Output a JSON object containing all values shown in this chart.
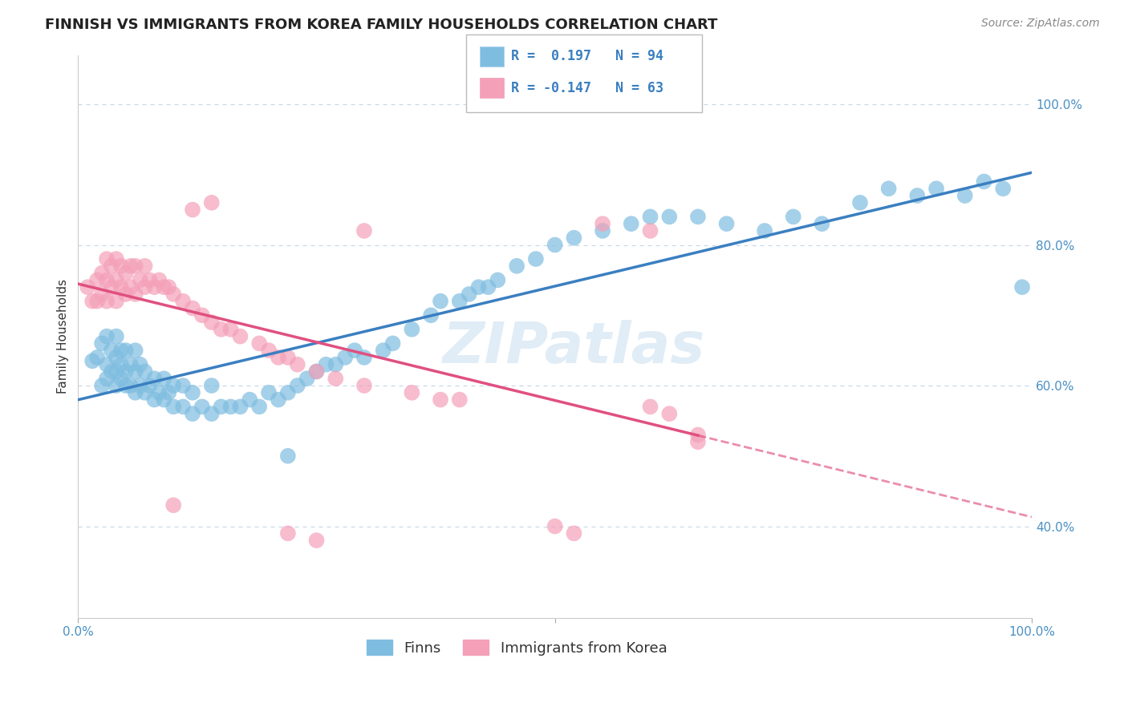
{
  "title": "FINNISH VS IMMIGRANTS FROM KOREA FAMILY HOUSEHOLDS CORRELATION CHART",
  "source": "Source: ZipAtlas.com",
  "ylabel": "Family Households",
  "legend_r_finns": "R =  0.197",
  "legend_n_finns": "N = 94",
  "legend_r_korea": "R = -0.147",
  "legend_n_korea": "N = 63",
  "ytick_labels": [
    "40.0%",
    "60.0%",
    "80.0%",
    "100.0%"
  ],
  "ytick_values": [
    0.4,
    0.6,
    0.8,
    1.0
  ],
  "xlim": [
    0.0,
    1.0
  ],
  "ylim": [
    0.27,
    1.07
  ],
  "color_finns": "#7fbde0",
  "color_korea": "#f4a0b8",
  "color_finns_line": "#3a7fc1",
  "color_korea_line": "#e05080",
  "background_color": "#ffffff",
  "grid_color": "#c8d8ea",
  "watermark": "ZIPatlas",
  "title_fontsize": 13,
  "axis_label_fontsize": 11,
  "tick_fontsize": 11,
  "legend_fontsize": 12,
  "source_fontsize": 10,
  "finns_x": [
    0.015,
    0.02,
    0.025,
    0.025,
    0.03,
    0.03,
    0.03,
    0.035,
    0.035,
    0.04,
    0.04,
    0.04,
    0.04,
    0.045,
    0.045,
    0.045,
    0.05,
    0.05,
    0.05,
    0.055,
    0.055,
    0.06,
    0.06,
    0.06,
    0.065,
    0.065,
    0.07,
    0.07,
    0.075,
    0.08,
    0.08,
    0.085,
    0.09,
    0.09,
    0.095,
    0.1,
    0.1,
    0.11,
    0.11,
    0.12,
    0.12,
    0.13,
    0.14,
    0.14,
    0.15,
    0.16,
    0.17,
    0.18,
    0.19,
    0.2,
    0.21,
    0.22,
    0.23,
    0.24,
    0.25,
    0.26,
    0.27,
    0.28,
    0.29,
    0.3,
    0.32,
    0.33,
    0.35,
    0.37,
    0.38,
    0.4,
    0.41,
    0.42,
    0.43,
    0.44,
    0.46,
    0.48,
    0.5,
    0.52,
    0.55,
    0.58,
    0.6,
    0.62,
    0.65,
    0.68,
    0.72,
    0.75,
    0.78,
    0.82,
    0.85,
    0.88,
    0.9,
    0.93,
    0.95,
    0.97,
    0.99,
    0.22
  ],
  "finns_y": [
    0.635,
    0.64,
    0.6,
    0.66,
    0.61,
    0.63,
    0.67,
    0.62,
    0.65,
    0.6,
    0.62,
    0.64,
    0.67,
    0.61,
    0.63,
    0.65,
    0.6,
    0.62,
    0.65,
    0.6,
    0.63,
    0.59,
    0.62,
    0.65,
    0.6,
    0.63,
    0.59,
    0.62,
    0.6,
    0.58,
    0.61,
    0.59,
    0.58,
    0.61,
    0.59,
    0.57,
    0.6,
    0.57,
    0.6,
    0.56,
    0.59,
    0.57,
    0.56,
    0.6,
    0.57,
    0.57,
    0.57,
    0.58,
    0.57,
    0.59,
    0.58,
    0.59,
    0.6,
    0.61,
    0.62,
    0.63,
    0.63,
    0.64,
    0.65,
    0.64,
    0.65,
    0.66,
    0.68,
    0.7,
    0.72,
    0.72,
    0.73,
    0.74,
    0.74,
    0.75,
    0.77,
    0.78,
    0.8,
    0.81,
    0.82,
    0.83,
    0.84,
    0.84,
    0.84,
    0.83,
    0.82,
    0.84,
    0.83,
    0.86,
    0.88,
    0.87,
    0.88,
    0.87,
    0.89,
    0.88,
    0.74,
    0.5
  ],
  "korea_x": [
    0.01,
    0.015,
    0.02,
    0.02,
    0.025,
    0.025,
    0.03,
    0.03,
    0.03,
    0.035,
    0.035,
    0.04,
    0.04,
    0.04,
    0.045,
    0.045,
    0.05,
    0.05,
    0.055,
    0.055,
    0.06,
    0.06,
    0.065,
    0.07,
    0.07,
    0.075,
    0.08,
    0.085,
    0.09,
    0.095,
    0.1,
    0.11,
    0.12,
    0.13,
    0.14,
    0.15,
    0.16,
    0.17,
    0.19,
    0.2,
    0.21,
    0.22,
    0.23,
    0.25,
    0.27,
    0.3,
    0.35,
    0.38,
    0.4,
    0.6,
    0.62,
    0.12,
    0.14,
    0.3,
    0.55,
    0.6,
    0.1,
    0.22,
    0.25,
    0.5,
    0.52,
    0.65,
    0.65
  ],
  "korea_y": [
    0.74,
    0.72,
    0.72,
    0.75,
    0.73,
    0.76,
    0.72,
    0.75,
    0.78,
    0.74,
    0.77,
    0.72,
    0.75,
    0.78,
    0.74,
    0.77,
    0.73,
    0.76,
    0.74,
    0.77,
    0.73,
    0.77,
    0.75,
    0.74,
    0.77,
    0.75,
    0.74,
    0.75,
    0.74,
    0.74,
    0.73,
    0.72,
    0.71,
    0.7,
    0.69,
    0.68,
    0.68,
    0.67,
    0.66,
    0.65,
    0.64,
    0.64,
    0.63,
    0.62,
    0.61,
    0.6,
    0.59,
    0.58,
    0.58,
    0.57,
    0.56,
    0.85,
    0.86,
    0.82,
    0.83,
    0.82,
    0.43,
    0.39,
    0.38,
    0.4,
    0.39,
    0.53,
    0.52
  ]
}
